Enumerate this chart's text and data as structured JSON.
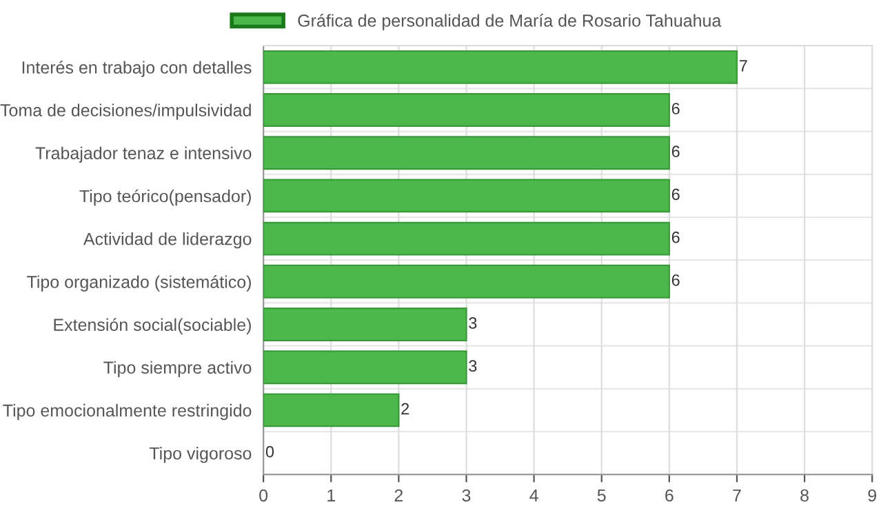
{
  "chart_data": {
    "type": "bar",
    "orientation": "horizontal",
    "categories": [
      "Interés en trabajo con detalles",
      "Toma de decisiones/impulsividad",
      "Trabajador tenaz e intensivo",
      "Tipo teórico(pensador)",
      "Actividad de liderazgo",
      "Tipo organizado (sistemático)",
      "Extensión social(sociable)",
      "Tipo siempre activo",
      "Tipo emocionalmente restringido",
      "Tipo vigoroso"
    ],
    "series": [
      {
        "name": "Gráfica de personalidad de María de Rosario Tahuahua",
        "color": "#4cb84c",
        "values": [
          7,
          6,
          6,
          6,
          6,
          6,
          3,
          3,
          2,
          0
        ]
      }
    ],
    "xlim": [
      0,
      9
    ],
    "xticks": [
      0,
      1,
      2,
      3,
      4,
      5,
      6,
      7,
      8,
      9
    ],
    "grid": true,
    "legend": "top",
    "data_labels": true
  }
}
